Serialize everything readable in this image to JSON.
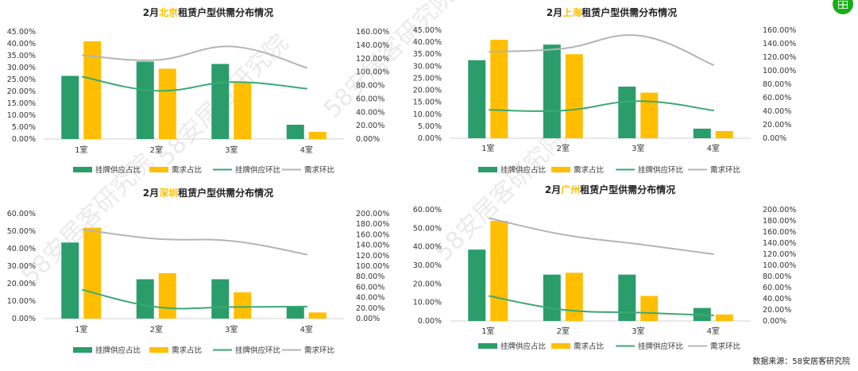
{
  "source_note": "数据来源：58安居客研究院",
  "watermark": "58安居客研究院",
  "colors": {
    "supply": "#2a9d6a",
    "demand": "#ffbf00",
    "supply_line": "#3aaa72",
    "demand_line": "#b4b4b4",
    "city": "#ffbf00"
  },
  "legend": [
    "挂牌供应占比",
    "需求占比",
    "挂牌供应环比",
    "需求环比"
  ],
  "chart_data": [
    {
      "type": "bar",
      "title_prefix": "2月",
      "title_city": "北京",
      "title_suffix": "租赁户型供需分布情况",
      "categories": [
        "1室",
        "2室",
        "3室",
        "4室"
      ],
      "ylim": [
        0,
        45
      ],
      "ystep": 5,
      "y2lim": [
        0,
        160
      ],
      "y2step": 20,
      "y_ticks": [
        "0.00%",
        "5.00%",
        "10.00%",
        "15.00%",
        "20.00%",
        "25.00%",
        "30.00%",
        "35.00%",
        "40.00%",
        "45.00%"
      ],
      "y2_ticks": [
        "0.00%",
        "20.00%",
        "40.00%",
        "60.00%",
        "80.00%",
        "100.00%",
        "120.00%",
        "140.00%",
        "160.00%"
      ],
      "series": [
        {
          "name": "挂牌供应占比",
          "axis": "left",
          "kind": "bar",
          "values": [
            26.5,
            32.5,
            31.5,
            6.0
          ]
        },
        {
          "name": "需求占比",
          "axis": "left",
          "kind": "bar",
          "values": [
            41.0,
            29.5,
            24.0,
            3.0
          ]
        },
        {
          "name": "挂牌供应环比",
          "axis": "right",
          "kind": "line",
          "values": [
            93,
            72,
            85,
            75
          ]
        },
        {
          "name": "需求环比",
          "axis": "right",
          "kind": "line",
          "values": [
            125,
            118,
            138,
            106
          ]
        }
      ]
    },
    {
      "type": "bar",
      "title_prefix": "2月",
      "title_city": "上海",
      "title_suffix": "租赁户型供需分布情况",
      "categories": [
        "1室",
        "2室",
        "3室",
        "4室"
      ],
      "ylim": [
        0,
        45
      ],
      "ystep": 5,
      "y2lim": [
        0,
        160
      ],
      "y2step": 20,
      "y_ticks": [
        "0.00%",
        "5.00%",
        "10.00%",
        "15.00%",
        "20.00%",
        "25.00%",
        "30.00%",
        "35.00%",
        "40.00%",
        "45.00%"
      ],
      "y2_ticks": [
        "0.00%",
        "20.00%",
        "40.00%",
        "60.00%",
        "80.00%",
        "100.00%",
        "120.00%",
        "140.00%",
        "160.00%"
      ],
      "series": [
        {
          "name": "挂牌供应占比",
          "axis": "left",
          "kind": "bar",
          "values": [
            32.5,
            39.0,
            21.5,
            4.0
          ]
        },
        {
          "name": "需求占比",
          "axis": "left",
          "kind": "bar",
          "values": [
            41.0,
            35.0,
            19.0,
            3.0
          ]
        },
        {
          "name": "挂牌供应环比",
          "axis": "right",
          "kind": "line",
          "values": [
            42,
            41,
            55,
            41
          ]
        },
        {
          "name": "需求环比",
          "axis": "right",
          "kind": "line",
          "values": [
            128,
            133,
            152,
            108
          ]
        }
      ]
    },
    {
      "type": "bar",
      "title_prefix": "2月",
      "title_city": "深圳",
      "title_suffix": "租赁户型供需分布情况",
      "categories": [
        "1室",
        "2室",
        "3室",
        "4室"
      ],
      "ylim": [
        0,
        60
      ],
      "ystep": 10,
      "y2lim": [
        0,
        200
      ],
      "y2step": 20,
      "y_ticks": [
        "0.00%",
        "10.00%",
        "20.00%",
        "30.00%",
        "40.00%",
        "50.00%",
        "60.00%"
      ],
      "y2_ticks": [
        "0.00%",
        "20.00%",
        "40.00%",
        "60.00%",
        "80.00%",
        "100.00%",
        "120.00%",
        "140.00%",
        "160.00%",
        "180.00%",
        "200.00%"
      ],
      "series": [
        {
          "name": "挂牌供应占比",
          "axis": "left",
          "kind": "bar",
          "values": [
            43.5,
            22.5,
            22.5,
            7.0
          ]
        },
        {
          "name": "需求占比",
          "axis": "left",
          "kind": "bar",
          "values": [
            52.0,
            26.0,
            15.0,
            3.5
          ]
        },
        {
          "name": "挂牌供应环比",
          "axis": "right",
          "kind": "line",
          "values": [
            55,
            22,
            22,
            23
          ]
        },
        {
          "name": "需求环比",
          "axis": "right",
          "kind": "line",
          "values": [
            170,
            152,
            148,
            122
          ]
        }
      ]
    },
    {
      "type": "bar",
      "title_prefix": "2月",
      "title_city": "广州",
      "title_suffix": "租赁户型供需分布情况",
      "categories": [
        "1室",
        "2室",
        "3室",
        "4室"
      ],
      "ylim": [
        0,
        60
      ],
      "ystep": 10,
      "y2lim": [
        0,
        200
      ],
      "y2step": 20,
      "y_ticks": [
        "0.00%",
        "10.00%",
        "20.00%",
        "30.00%",
        "40.00%",
        "50.00%",
        "60.00%"
      ],
      "y2_ticks": [
        "0.00%",
        "20.00%",
        "40.00%",
        "60.00%",
        "80.00%",
        "100.00%",
        "120.00%",
        "140.00%",
        "160.00%",
        "180.00%",
        "200.00%"
      ],
      "series": [
        {
          "name": "挂牌供应占比",
          "axis": "left",
          "kind": "bar",
          "values": [
            38.5,
            25.0,
            25.0,
            7.0
          ]
        },
        {
          "name": "需求占比",
          "axis": "left",
          "kind": "bar",
          "values": [
            54.0,
            26.0,
            13.5,
            3.5
          ]
        },
        {
          "name": "挂牌供应环比",
          "axis": "right",
          "kind": "line",
          "values": [
            45,
            20,
            15,
            10
          ]
        },
        {
          "name": "需求环比",
          "axis": "right",
          "kind": "line",
          "values": [
            185,
            155,
            138,
            120
          ]
        }
      ]
    }
  ]
}
